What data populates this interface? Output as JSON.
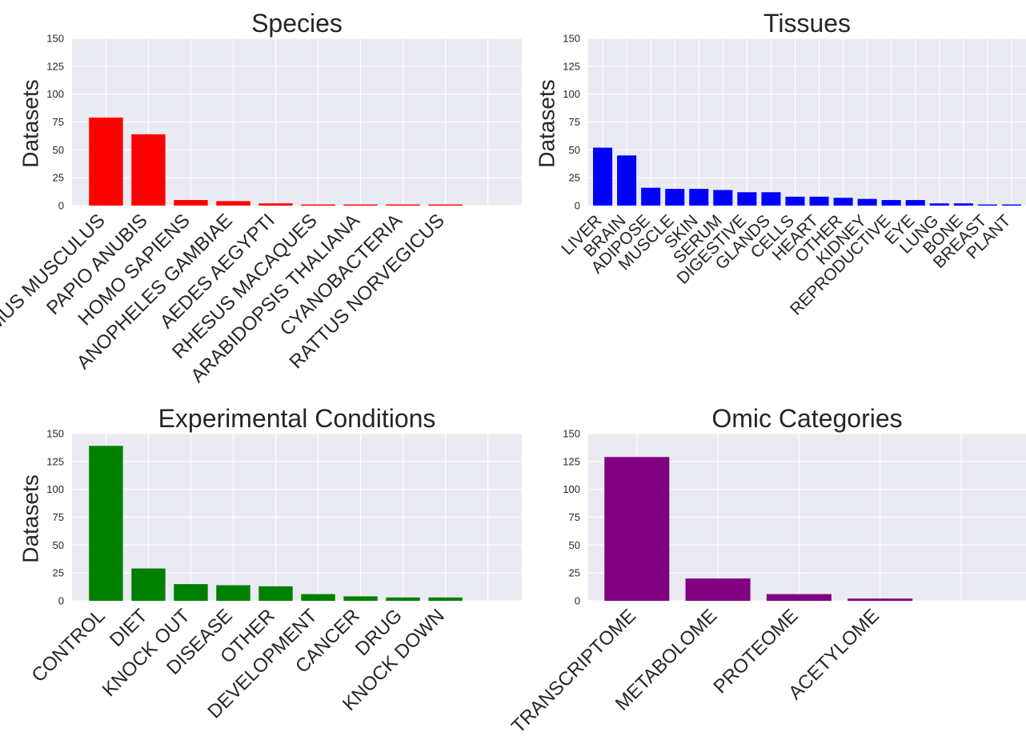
{
  "chart_data": [
    {
      "type": "bar",
      "title": "Species",
      "ylabel": "Datasets",
      "ylim": [
        0,
        150
      ],
      "yticks": [
        0,
        25,
        50,
        75,
        100,
        125,
        150
      ],
      "grid": true,
      "color": "#ff0000",
      "categories": [
        "MUS MUSCULUS",
        "PAPIO ANUBIS",
        "HOMO SAPIENS",
        "ANOPHELES GAMBIAE",
        "AEDES AEGYPTI",
        "RHESUS MACAQUES",
        "ARABIDOPSIS THALIANA",
        "CYANOBACTERIA",
        "RATTUS NORVEGICUS"
      ],
      "values": [
        79,
        64,
        5,
        4,
        2,
        1,
        1,
        1,
        1
      ]
    },
    {
      "type": "bar",
      "title": "Tissues",
      "ylabel": "Datasets",
      "ylim": [
        0,
        150
      ],
      "yticks": [
        0,
        25,
        50,
        75,
        100,
        125,
        150
      ],
      "grid": true,
      "color": "#0000ff",
      "categories": [
        "LIVER",
        "BRAIN",
        "ADIPOSE",
        "MUSCLE",
        "SKIN",
        "SERUM",
        "DIGESTIVE",
        "GLANDS",
        "CELLS",
        "HEART",
        "OTHER",
        "KIDNEY",
        "REPRODUCTIVE",
        "EYE",
        "LUNG",
        "BONE",
        "BREAST",
        "PLANT"
      ],
      "values": [
        52,
        45,
        16,
        15,
        15,
        14,
        12,
        12,
        8,
        8,
        7,
        6,
        5,
        5,
        2,
        2,
        1,
        1
      ]
    },
    {
      "type": "bar",
      "title": "Experimental Conditions",
      "ylabel": "Datasets",
      "ylim": [
        0,
        150
      ],
      "yticks": [
        0,
        25,
        50,
        75,
        100,
        125,
        150
      ],
      "grid": true,
      "color": "#008000",
      "categories": [
        "CONTROL",
        "DIET",
        "KNOCK OUT",
        "DISEASE",
        "OTHER",
        "DEVELOPMENT",
        "CANCER",
        "DRUG",
        "KNOCK DOWN"
      ],
      "values": [
        139,
        29,
        15,
        14,
        13,
        6,
        4,
        3,
        3
      ]
    },
    {
      "type": "bar",
      "title": "Omic Categories",
      "ylabel": "",
      "ylim": [
        0,
        150
      ],
      "yticks": [
        0,
        25,
        50,
        75,
        100,
        125,
        150
      ],
      "grid": true,
      "color": "#800080",
      "categories": [
        "TRANSCRIPTOME",
        "METABOLOME",
        "PROTEOME",
        "ACETYLOME"
      ],
      "values": [
        129,
        20,
        6,
        2
      ]
    }
  ]
}
